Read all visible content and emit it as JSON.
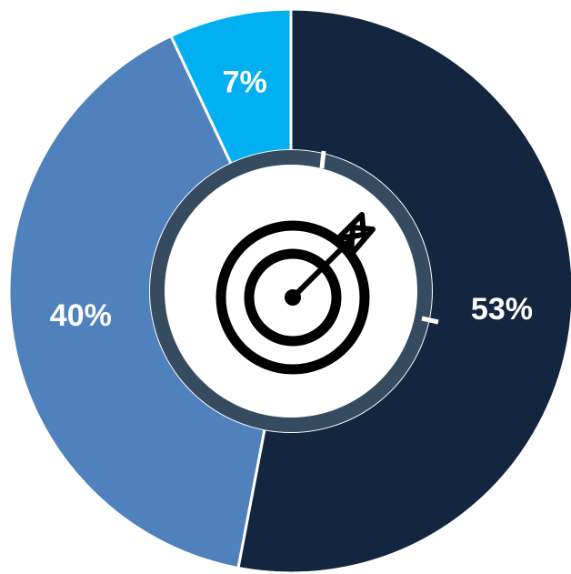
{
  "chart_data": {
    "type": "pie",
    "categories": [
      null,
      null,
      null
    ],
    "values": [
      53,
      40,
      7
    ],
    "value_labels": [
      "53%",
      "40%",
      "7%"
    ],
    "colors": [
      "#13253f",
      "#4f81bd",
      "#00b0f0"
    ]
  }
}
